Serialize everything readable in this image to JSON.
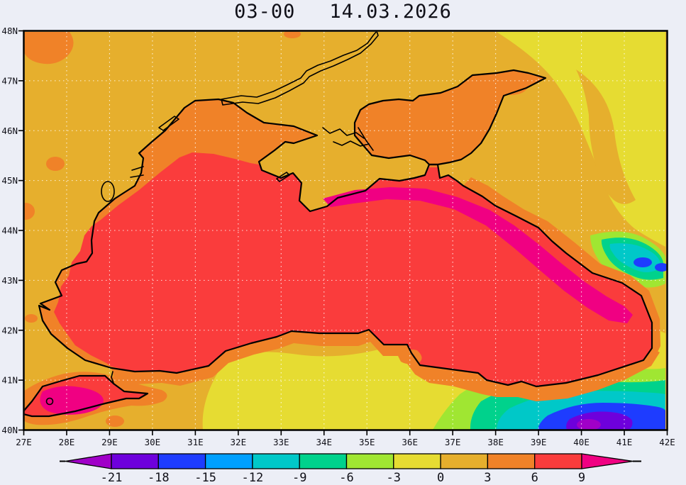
{
  "title": {
    "time": "03-00",
    "date": "14.03.2026"
  },
  "axes": {
    "lat_labels": [
      "48N",
      "47N",
      "46N",
      "45N",
      "44N",
      "43N",
      "42N",
      "41N",
      "40N"
    ],
    "lon_labels": [
      "27E",
      "28E",
      "29E",
      "30E",
      "31E",
      "32E",
      "33E",
      "34E",
      "35E",
      "36E",
      "37E",
      "38E",
      "39E",
      "40E",
      "41E",
      "42E"
    ]
  },
  "colorbar": {
    "tick_labels": [
      "-21",
      "-18",
      "-15",
      "-12",
      "-9",
      "-6",
      "-3",
      "0",
      "3",
      "6",
      "9"
    ],
    "segment_colors": [
      "#6E00DC",
      "#1E3CFF",
      "#00A0FF",
      "#00C8C8",
      "#00D28C",
      "#A0E632",
      "#E6DC32",
      "#E6AF2D",
      "#F08228",
      "#FA3C3C"
    ],
    "below_min_color": "#A000C8",
    "above_max_color": "#F00082"
  },
  "palette": {
    "background": "#ECEEF6",
    "land": "#E6AF2D",
    "yellow": "#E6DC32",
    "orange": "#F08228",
    "red": "#FA3C3C",
    "magenta": "#F00082",
    "yellowgreen": "#A0E632",
    "green": "#00D28C",
    "cyan": "#00C8C8",
    "azure": "#00A0FF",
    "blue": "#1E3CFF",
    "violet": "#6E00DC",
    "purple": "#A000C8",
    "coastline": "#000000",
    "grid": "#FFFFFF"
  },
  "chart_data": {
    "type": "heatmap",
    "subtype": "filled-contour-map",
    "title": "03-00 14.03.2026",
    "region": "Black Sea / Sea of Azov / Sea of Marmara",
    "xlabel": "longitude",
    "ylabel": "latitude",
    "x_range": [
      "27E",
      "42E"
    ],
    "y_range": [
      "40N",
      "48N"
    ],
    "x_tick_step_deg": 1,
    "y_tick_step_deg": 1,
    "grid": true,
    "legend_position": "bottom",
    "contour_levels": [
      -21,
      -18,
      -15,
      -12,
      -9,
      -6,
      -3,
      0,
      3,
      6,
      9
    ],
    "level_colors": [
      "#A000C8",
      "#6E00DC",
      "#1E3CFF",
      "#00A0FF",
      "#00C8C8",
      "#00D28C",
      "#A0E632",
      "#E6DC32",
      "#E6AF2D",
      "#F08228",
      "#FA3C3C",
      "#F00082"
    ],
    "values_summary": {
      "open_black_sea": "6 to 9 (red), band >9 (magenta) along Crimea-Caucasus coast",
      "sea_of_azov": "3 to 6 (orange)",
      "sea_of_marmara": "6 to >9 (red/magenta hot spot)",
      "land_general": "0 to 3 (mustard) with 3-6 (orange) patches near coasts",
      "northeast_land": "-3 to 0 (yellow)",
      "caucasus_pontic_mountains": "-3 down to below -21 (green/cyan/blue/violet/purple pockets in SE corner and east edge)"
    }
  }
}
